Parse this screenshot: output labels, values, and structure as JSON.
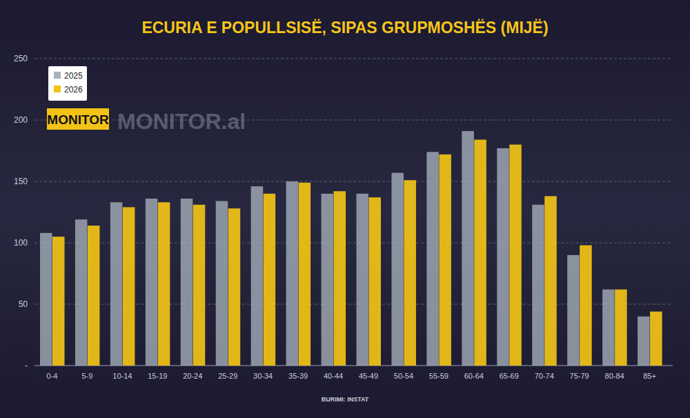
{
  "chart_data": {
    "type": "bar",
    "title": "ECURIA E POPULLSISË, SIPAS GRUPMOSHËS (MIJË)",
    "annotations": [
      "MONITOR",
      "MONITOR.al",
      "BURIMI: INSTAT"
    ],
    "categories": [
      "0-4",
      "5-9",
      "10-14",
      "15-19",
      "20-24",
      "25-29",
      "30-34",
      "35-39",
      "40-44",
      "45-49",
      "50-54",
      "55-59",
      "60-64",
      "65-69",
      "70-74",
      "75-79",
      "80-84",
      "85+"
    ],
    "series": [
      {
        "name": "2025",
        "color": "#a7b1bb",
        "values": [
          108,
          119,
          133,
          136,
          136,
          134,
          146,
          150,
          140,
          140,
          157,
          174,
          191,
          177,
          131,
          90,
          62,
          40
        ]
      },
      {
        "name": "2026",
        "color": "#f2c316",
        "values": [
          105,
          114,
          129,
          133,
          131,
          128,
          140,
          149,
          142,
          137,
          151,
          172,
          184,
          180,
          138,
          98,
          62,
          44
        ]
      }
    ],
    "ylim": [
      0,
      250
    ],
    "yticks": [
      {
        "value": 0,
        "label": "-"
      },
      50,
      100,
      150,
      200,
      250
    ],
    "grid": true,
    "legend": "top-left"
  }
}
